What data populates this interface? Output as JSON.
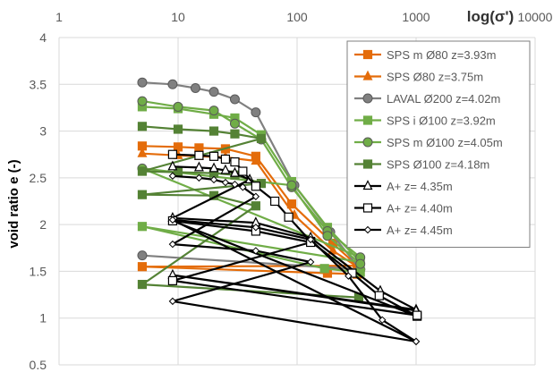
{
  "chart_data": {
    "type": "line",
    "xlabel": "log(σ')",
    "ylabel": "void ratio e (-)",
    "xscale": "log",
    "xlim": [
      1,
      10000
    ],
    "ylim": [
      0.5,
      4
    ],
    "x_ticks": [
      "1",
      "10",
      "100",
      "1000",
      "10000"
    ],
    "y_ticks": [
      "0.5",
      "1",
      "1.5",
      "2",
      "2.5",
      "3",
      "3.5",
      "4"
    ],
    "grid": "vertical and horizontal major gridlines",
    "legend_position": "top-right",
    "series": [
      {
        "name": "SPS m Ø80 z=3.93m",
        "color": "#E46C0A",
        "marker": "square",
        "marker_fill": "#E46C0A",
        "segments": [
          [
            [
              5,
              2.84
            ],
            [
              10,
              2.83
            ],
            [
              15,
              2.82
            ],
            [
              25,
              2.81
            ],
            [
              45,
              2.73
            ],
            [
              90,
              2.22
            ],
            [
              200,
              1.8
            ],
            [
              320,
              1.56
            ],
            [
              5,
              1.55
            ],
            [
              180,
              1.48
            ],
            [
              320,
              1.47
            ]
          ]
        ]
      },
      {
        "name": "SPS Ø80 z=3.75m",
        "color": "#E46C0A",
        "marker": "triangle",
        "marker_fill": "#E46C0A",
        "segments": [
          [
            [
              5,
              2.76
            ],
            [
              10,
              2.74
            ],
            [
              15,
              2.73
            ],
            [
              25,
              2.72
            ],
            [
              45,
              2.68
            ],
            [
              95,
              2.1
            ],
            [
              200,
              1.72
            ],
            [
              320,
              1.55
            ]
          ]
        ]
      },
      {
        "name": "LAVAL Ø200 z=4.02m",
        "color": "#808080",
        "marker": "circle",
        "marker_fill": "#808080",
        "segments": [
          [
            [
              5,
              3.52
            ],
            [
              9,
              3.5
            ],
            [
              14,
              3.46
            ],
            [
              20,
              3.42
            ],
            [
              30,
              3.34
            ],
            [
              45,
              3.2
            ],
            [
              95,
              2.42
            ],
            [
              190,
              1.92
            ],
            [
              340,
              1.52
            ],
            [
              5,
              1.67
            ],
            [
              340,
              1.52
            ]
          ]
        ]
      },
      {
        "name": "SPS i Ø100 z=3.92m",
        "color": "#70AD47",
        "marker": "square",
        "marker_fill": "#70AD47",
        "segments": [
          [
            [
              5,
              3.26
            ],
            [
              10,
              3.24
            ],
            [
              20,
              3.18
            ],
            [
              30,
              3.14
            ],
            [
              50,
              2.96
            ],
            [
              90,
              2.46
            ],
            [
              180,
              1.97
            ],
            [
              340,
              1.6
            ],
            [
              5,
              1.98
            ],
            [
              170,
              1.53
            ],
            [
              340,
              1.49
            ]
          ]
        ]
      },
      {
        "name": "SPS m Ø100 z=4.05m",
        "color": "#70AD47",
        "marker": "circle",
        "marker_fill": "#70AD47",
        "segments": [
          [
            [
              5,
              3.32
            ],
            [
              10,
              3.26
            ],
            [
              20,
              3.22
            ],
            [
              30,
              3.08
            ],
            [
              50,
              2.91
            ],
            [
              90,
              2.4
            ],
            [
              180,
              1.93
            ],
            [
              340,
              1.65
            ],
            [
              5,
              2.6
            ],
            [
              90,
              2.42
            ],
            [
              180,
              1.88
            ],
            [
              340,
              1.58
            ]
          ]
        ]
      },
      {
        "name": "SPS Ø100 z=4.18m",
        "color": "#548235",
        "marker": "square",
        "marker_fill": "#548235",
        "segments": [
          [
            [
              5,
              3.05
            ],
            [
              10,
              3.02
            ],
            [
              20,
              3.0
            ],
            [
              30,
              2.97
            ],
            [
              50,
              2.92
            ],
            [
              5,
              2.57
            ],
            [
              10,
              2.56
            ],
            [
              20,
              2.55
            ],
            [
              30,
              2.53
            ],
            [
              50,
              2.44
            ],
            [
              5,
              2.32
            ],
            [
              20,
              2.31
            ],
            [
              45,
              2.2
            ],
            [
              5,
              1.36
            ],
            [
              330,
              1.22
            ]
          ]
        ]
      },
      {
        "name": "A+ z= 4.35m",
        "color": "#000000",
        "marker": "triangle",
        "marker_fill": "#ffffff",
        "segments": [
          [
            [
              9,
              2.62
            ],
            [
              15,
              2.61
            ],
            [
              20,
              2.6
            ],
            [
              25,
              2.58
            ],
            [
              30,
              2.55
            ],
            [
              40,
              2.48
            ],
            [
              9,
              2.07
            ],
            [
              45,
              2.02
            ],
            [
              130,
              1.86
            ],
            [
              500,
              1.29
            ],
            [
              1000,
              1.09
            ],
            [
              9,
              1.46
            ],
            [
              1000,
              1.08
            ]
          ]
        ]
      },
      {
        "name": "A+ z= 4.40m",
        "color": "#000000",
        "marker": "square",
        "marker_fill": "#ffffff",
        "segments": [
          [
            [
              9,
              2.75
            ],
            [
              15,
              2.74
            ],
            [
              20,
              2.73
            ],
            [
              25,
              2.7
            ],
            [
              30,
              2.67
            ],
            [
              35,
              2.57
            ],
            [
              45,
              2.41
            ],
            [
              65,
              2.25
            ],
            [
              85,
              2.08
            ],
            [
              130,
              1.82
            ],
            [
              290,
              1.48
            ],
            [
              490,
              1.24
            ],
            [
              1020,
              1.02
            ],
            [
              9,
              2.04
            ],
            [
              45,
              1.93
            ],
            [
              130,
              1.81
            ],
            [
              9,
              1.4
            ],
            [
              1020,
              1.03
            ]
          ]
        ]
      },
      {
        "name": "A+ z= 4.45m",
        "color": "#000000",
        "marker": "diamond",
        "marker_fill": "#ffffff",
        "segments": [
          [
            [
              9,
              2.52
            ],
            [
              15,
              2.5
            ],
            [
              20,
              2.48
            ],
            [
              25,
              2.45
            ],
            [
              30,
              2.43
            ],
            [
              35,
              2.4
            ],
            [
              45,
              2.3
            ],
            [
              9,
              1.79
            ],
            [
              45,
              1.72
            ],
            [
              130,
              1.6
            ],
            [
              9,
              1.18
            ],
            [
              1000,
              0.75
            ],
            [
              9,
              2.05
            ],
            [
              45,
              1.97
            ],
            [
              130,
              1.84
            ],
            [
              270,
              1.45
            ],
            [
              520,
              0.98
            ],
            [
              1000,
              0.75
            ]
          ]
        ]
      }
    ]
  }
}
